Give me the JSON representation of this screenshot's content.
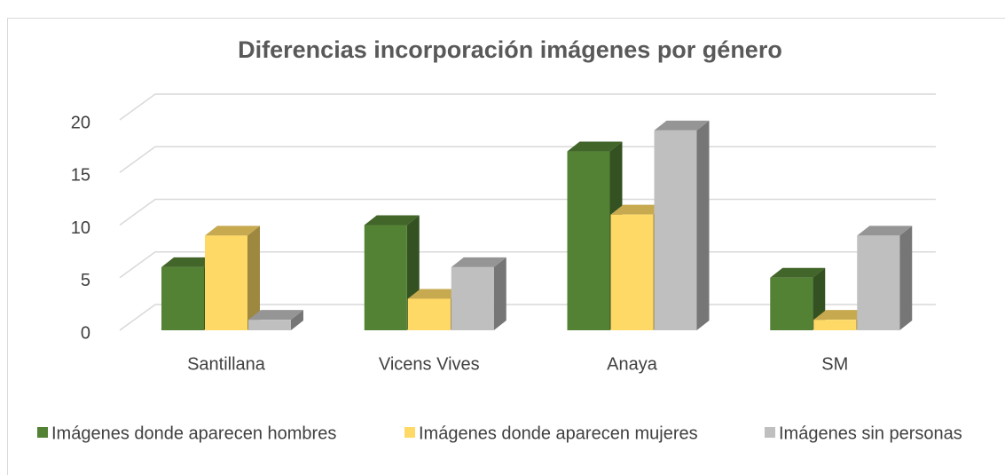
{
  "chart_data": {
    "type": "bar3d",
    "title": "Diferencias incorporación imágenes por género",
    "categories": [
      "Santillana",
      "Vicens Vives",
      "Anaya",
      "SM"
    ],
    "series": [
      {
        "name": "Imágenes donde aparecen hombres",
        "color": "#548235",
        "values": [
          6,
          10,
          17,
          5
        ]
      },
      {
        "name": "Imágenes donde aparecen mujeres",
        "color": "#ffd966",
        "values": [
          9,
          3,
          11,
          1
        ]
      },
      {
        "name": "Imágenes sin personas",
        "color": "#bfbfbf",
        "values": [
          1,
          6,
          19,
          9
        ]
      }
    ],
    "ylim": [
      0,
      20
    ],
    "yticks": [
      0,
      5,
      10,
      15,
      20
    ],
    "grid": true,
    "legend": "bottom"
  }
}
